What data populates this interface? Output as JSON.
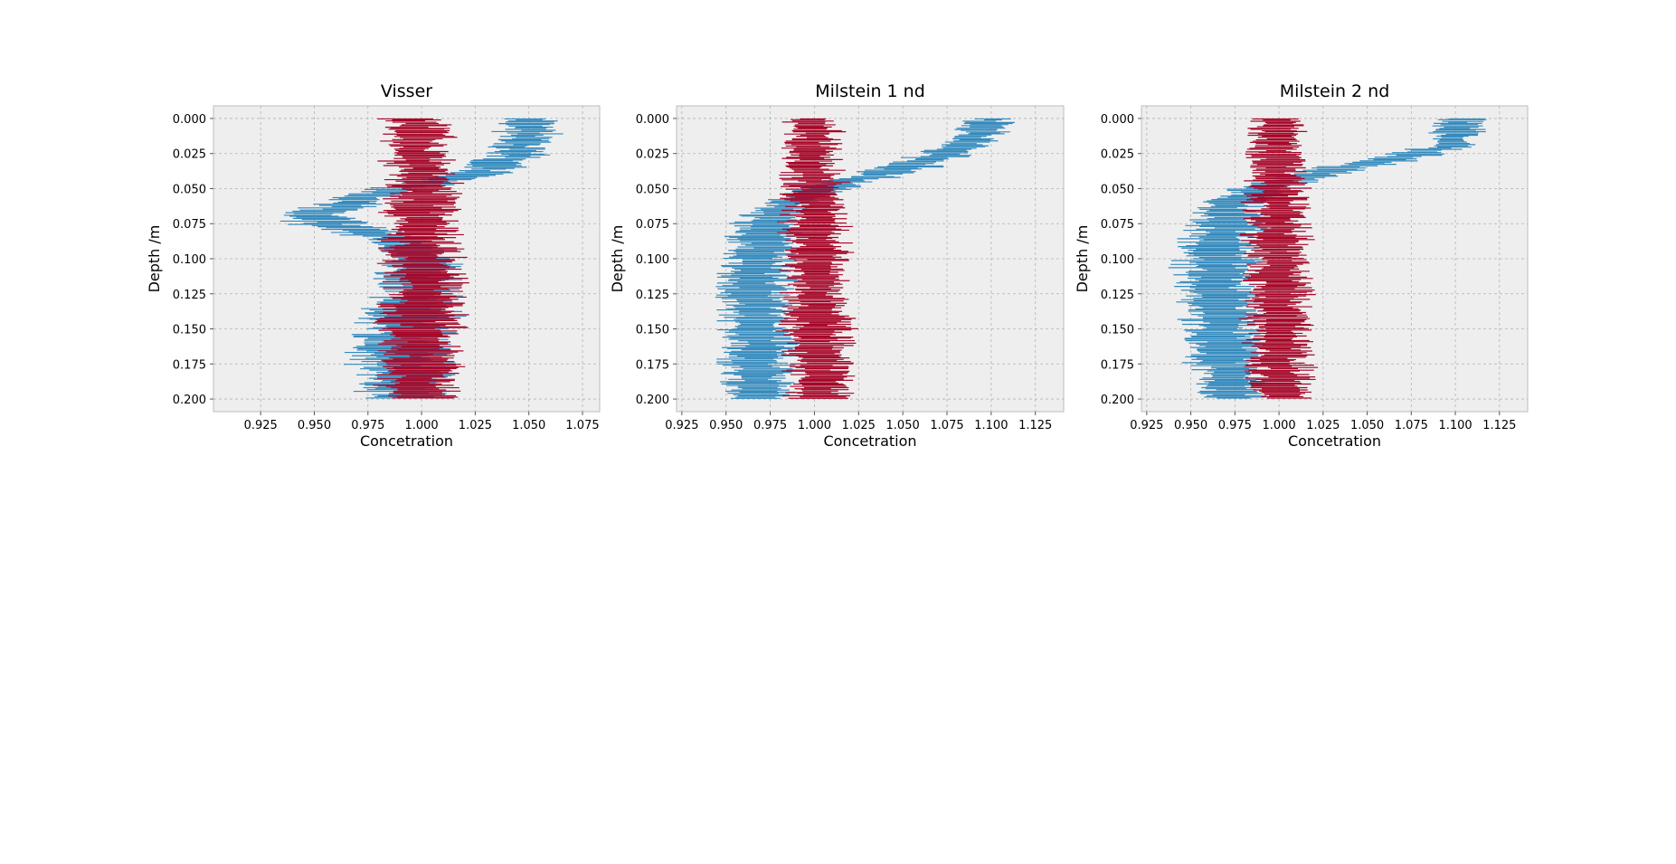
{
  "chart_data": [
    {
      "type": "line",
      "title": "Visser",
      "xlabel": "Concetration",
      "ylabel": "Depth /m",
      "xlim": [
        0.903,
        0.083
      ],
      "ylim": [
        0.209,
        -0.009
      ],
      "y_inverted": true,
      "grid": true,
      "xticks": [
        "0.925",
        "0.950",
        "0.975",
        "1.000",
        "1.025",
        "1.050",
        "1.075"
      ],
      "yticks": [
        "0.000",
        "0.025",
        "0.050",
        "0.075",
        "0.100",
        "0.125",
        "0.150",
        "0.175",
        "0.200"
      ],
      "series": [
        {
          "color": "#348ABD",
          "depth": [
            0.0,
            0.025,
            0.04,
            0.05,
            0.06,
            0.068,
            0.075,
            0.085,
            0.1,
            0.125,
            0.15,
            0.175,
            0.2
          ],
          "center": [
            1.052,
            1.045,
            1.025,
            0.99,
            0.968,
            0.95,
            0.957,
            0.985,
            0.998,
            0.998,
            0.992,
            0.99,
            0.995
          ],
          "spread": [
            0.014,
            0.015,
            0.016,
            0.015,
            0.016,
            0.02,
            0.02,
            0.016,
            0.018,
            0.022,
            0.025,
            0.026,
            0.022
          ]
        },
        {
          "color": "#A60628",
          "depth": [
            0.0,
            0.05,
            0.1,
            0.15,
            0.2
          ],
          "center": [
            0.998,
            1.0,
            1.0,
            1.0,
            1.0
          ],
          "spread": [
            0.016,
            0.018,
            0.02,
            0.021,
            0.02
          ]
        }
      ]
    },
    {
      "type": "line",
      "title": "Milstein 1 nd",
      "xlabel": "Concetration",
      "ylabel": "Depth /m",
      "xlim": [
        0.922,
        0.141
      ],
      "ylim": [
        0.209,
        -0.009
      ],
      "y_inverted": true,
      "grid": true,
      "xticks": [
        "0.925",
        "0.950",
        "0.975",
        "1.000",
        "1.025",
        "1.050",
        "1.075",
        "1.100",
        "1.125"
      ],
      "yticks": [
        "0.000",
        "0.025",
        "0.050",
        "0.075",
        "0.100",
        "0.125",
        "0.150",
        "0.175",
        "0.200"
      ],
      "series": [
        {
          "color": "#348ABD",
          "depth": [
            0.0,
            0.02,
            0.035,
            0.045,
            0.055,
            0.065,
            0.08,
            0.1,
            0.125,
            0.15,
            0.175,
            0.2
          ],
          "center": [
            1.1,
            1.085,
            1.05,
            1.02,
            0.995,
            0.98,
            0.972,
            0.968,
            0.965,
            0.968,
            0.968,
            0.97
          ],
          "spread": [
            0.015,
            0.016,
            0.02,
            0.018,
            0.016,
            0.017,
            0.022,
            0.023,
            0.024,
            0.024,
            0.023,
            0.02
          ]
        },
        {
          "color": "#A60628",
          "depth": [
            0.0,
            0.05,
            0.1,
            0.15,
            0.2
          ],
          "center": [
            0.999,
            1.0,
            1.001,
            1.002,
            1.003
          ],
          "spread": [
            0.016,
            0.018,
            0.02,
            0.022,
            0.02
          ]
        }
      ]
    },
    {
      "type": "line",
      "title": "Milstein 2 nd",
      "xlabel": "Concetration",
      "ylabel": "Depth /m",
      "xlim": [
        0.922,
        0.141
      ],
      "ylim": [
        0.209,
        -0.009
      ],
      "y_inverted": true,
      "grid": true,
      "xticks": [
        "0.925",
        "0.950",
        "0.975",
        "1.000",
        "1.025",
        "1.050",
        "1.075",
        "1.100",
        "1.125"
      ],
      "yticks": [
        "0.000",
        "0.025",
        "0.050",
        "0.075",
        "0.100",
        "0.125",
        "0.150",
        "0.175",
        "0.200"
      ],
      "series": [
        {
          "color": "#348ABD",
          "depth": [
            0.0,
            0.02,
            0.03,
            0.04,
            0.05,
            0.06,
            0.08,
            0.1,
            0.125,
            0.15,
            0.175,
            0.2
          ],
          "center": [
            1.105,
            1.095,
            1.06,
            1.02,
            0.99,
            0.972,
            0.968,
            0.965,
            0.965,
            0.968,
            0.97,
            0.972
          ],
          "spread": [
            0.015,
            0.016,
            0.02,
            0.02,
            0.017,
            0.02,
            0.024,
            0.025,
            0.025,
            0.024,
            0.023,
            0.02
          ]
        },
        {
          "color": "#A60628",
          "depth": [
            0.0,
            0.05,
            0.1,
            0.15,
            0.2
          ],
          "center": [
            0.998,
            0.999,
            1.0,
            1.0,
            1.001
          ],
          "spread": [
            0.016,
            0.018,
            0.02,
            0.021,
            0.02
          ]
        }
      ]
    }
  ]
}
